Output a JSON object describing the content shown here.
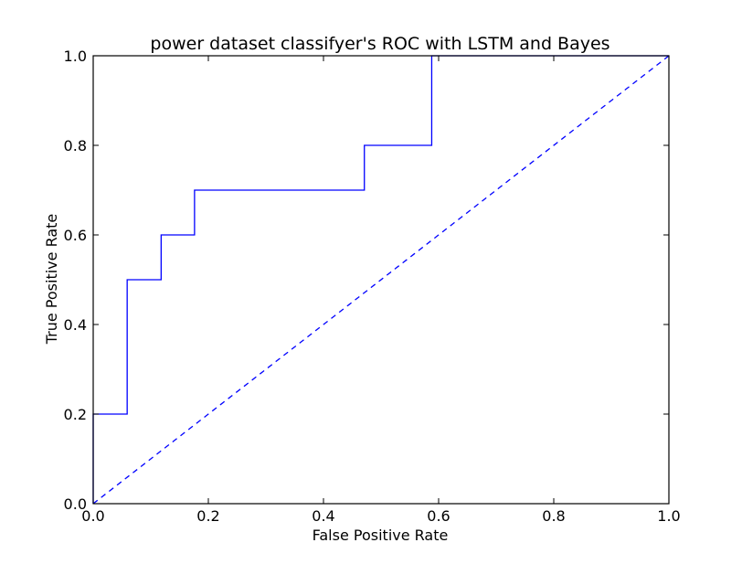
{
  "chart_data": {
    "type": "line",
    "title": "power dataset classifyer's ROC with LSTM and Bayes",
    "xlabel": "False Positive Rate",
    "ylabel": "True Positive Rate",
    "xlim": [
      0.0,
      1.0
    ],
    "ylim": [
      0.0,
      1.0
    ],
    "xticks": [
      "0.0",
      "0.2",
      "0.4",
      "0.6",
      "0.8",
      "1.0"
    ],
    "yticks": [
      "0.0",
      "0.2",
      "0.4",
      "0.6",
      "0.8",
      "1.0"
    ],
    "grid": false,
    "series": [
      {
        "style": "solid-step",
        "color": "#0000ff",
        "x": [
          0.0,
          0.0,
          0.059,
          0.059,
          0.118,
          0.118,
          0.176,
          0.176,
          0.471,
          0.471,
          0.588,
          0.588,
          1.0
        ],
        "y": [
          0.0,
          0.2,
          0.2,
          0.5,
          0.5,
          0.6,
          0.6,
          0.7,
          0.7,
          0.8,
          0.8,
          1.0,
          1.0
        ]
      },
      {
        "style": "dashed",
        "color": "#0000ff",
        "x": [
          0.0,
          1.0
        ],
        "y": [
          0.0,
          1.0
        ]
      }
    ]
  }
}
